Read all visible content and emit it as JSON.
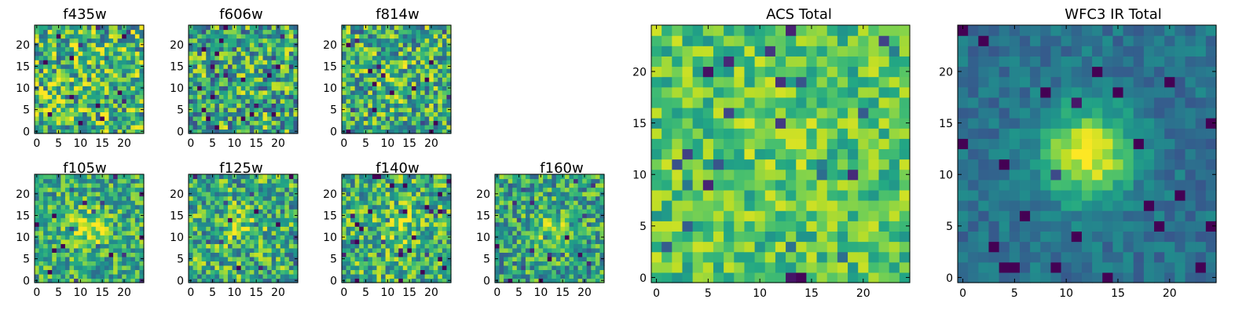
{
  "chart_data": [
    {
      "type": "heatmap",
      "title": "f435w",
      "xlim": [
        -0.5,
        24.5
      ],
      "ylim": [
        -0.5,
        24.5
      ],
      "xticks": [
        0,
        5,
        10,
        15,
        20
      ],
      "yticks": [
        0,
        5,
        10,
        15,
        20
      ],
      "size": [
        25,
        25
      ],
      "colormap": "viridis",
      "source_peak": [
        12,
        12
      ],
      "source_strength": 0.0,
      "noise": 0.75,
      "mean_level": 0.66,
      "seed": 11
    },
    {
      "type": "heatmap",
      "title": "f606w",
      "xlim": [
        -0.5,
        24.5
      ],
      "ylim": [
        -0.5,
        24.5
      ],
      "xticks": [
        0,
        5,
        10,
        15,
        20
      ],
      "yticks": [
        0,
        5,
        10,
        15,
        20
      ],
      "size": [
        25,
        25
      ],
      "colormap": "viridis",
      "source_peak": [
        12,
        12
      ],
      "source_strength": 0.0,
      "noise": 0.75,
      "mean_level": 0.6,
      "seed": 23
    },
    {
      "type": "heatmap",
      "title": "f814w",
      "xlim": [
        -0.5,
        24.5
      ],
      "ylim": [
        -0.5,
        24.5
      ],
      "xticks": [
        0,
        5,
        10,
        15,
        20
      ],
      "yticks": [
        0,
        5,
        10,
        15,
        20
      ],
      "size": [
        25,
        25
      ],
      "colormap": "viridis",
      "source_peak": [
        11,
        12
      ],
      "source_strength": 0.12,
      "noise": 0.7,
      "mean_level": 0.62,
      "seed": 37
    },
    {
      "type": "heatmap",
      "title": "f105w",
      "xlim": [
        -0.5,
        24.5
      ],
      "ylim": [
        -0.5,
        24.5
      ],
      "xticks": [
        0,
        5,
        10,
        15,
        20
      ],
      "yticks": [
        0,
        5,
        10,
        15,
        20
      ],
      "size": [
        25,
        25
      ],
      "colormap": "viridis",
      "source_peak": [
        12,
        12
      ],
      "source_strength": 0.3,
      "noise": 0.55,
      "mean_level": 0.62,
      "seed": 41
    },
    {
      "type": "heatmap",
      "title": "f125w",
      "xlim": [
        -0.5,
        24.5
      ],
      "ylim": [
        -0.5,
        24.5
      ],
      "xticks": [
        0,
        5,
        10,
        15,
        20
      ],
      "yticks": [
        0,
        5,
        10,
        15,
        20
      ],
      "size": [
        25,
        25
      ],
      "colormap": "viridis",
      "source_peak": [
        12,
        12
      ],
      "source_strength": 0.18,
      "noise": 0.65,
      "mean_level": 0.62,
      "seed": 53
    },
    {
      "type": "heatmap",
      "title": "f140w",
      "xlim": [
        -0.5,
        24.5
      ],
      "ylim": [
        -0.5,
        24.5
      ],
      "xticks": [
        0,
        5,
        10,
        15,
        20
      ],
      "yticks": [
        0,
        5,
        10,
        15,
        20
      ],
      "size": [
        25,
        25
      ],
      "colormap": "viridis",
      "source_peak": [
        12,
        13
      ],
      "source_strength": 0.2,
      "noise": 0.62,
      "mean_level": 0.64,
      "seed": 67
    },
    {
      "type": "heatmap",
      "title": "f160w",
      "xlim": [
        -0.5,
        24.5
      ],
      "ylim": [
        -0.5,
        24.5
      ],
      "xticks": [
        0,
        5,
        10,
        15,
        20
      ],
      "yticks": [
        0,
        5,
        10,
        15,
        20
      ],
      "size": [
        25,
        25
      ],
      "colormap": "viridis",
      "source_peak": [
        12,
        12
      ],
      "source_strength": 0.25,
      "noise": 0.6,
      "mean_level": 0.58,
      "seed": 79
    },
    {
      "type": "heatmap",
      "title": "ACS Total",
      "xlim": [
        -0.5,
        24.5
      ],
      "ylim": [
        -0.5,
        24.5
      ],
      "xticks": [
        0,
        5,
        10,
        15,
        20
      ],
      "yticks": [
        0,
        5,
        10,
        15,
        20
      ],
      "size": [
        25,
        25
      ],
      "colormap": "viridis",
      "source_peak": [
        12,
        12
      ],
      "source_strength": 0.06,
      "noise": 0.42,
      "mean_level": 0.72,
      "seed": 97
    },
    {
      "type": "heatmap",
      "title": "WFC3 IR Total",
      "xlim": [
        -0.5,
        24.5
      ],
      "ylim": [
        -0.5,
        24.5
      ],
      "xticks": [
        0,
        5,
        10,
        15,
        20
      ],
      "yticks": [
        0,
        5,
        10,
        15,
        20
      ],
      "size": [
        25,
        25
      ],
      "colormap": "viridis",
      "source_peak": [
        12,
        12
      ],
      "source_strength": 0.62,
      "noise": 0.22,
      "mean_level": 0.38,
      "seed": 131
    }
  ]
}
